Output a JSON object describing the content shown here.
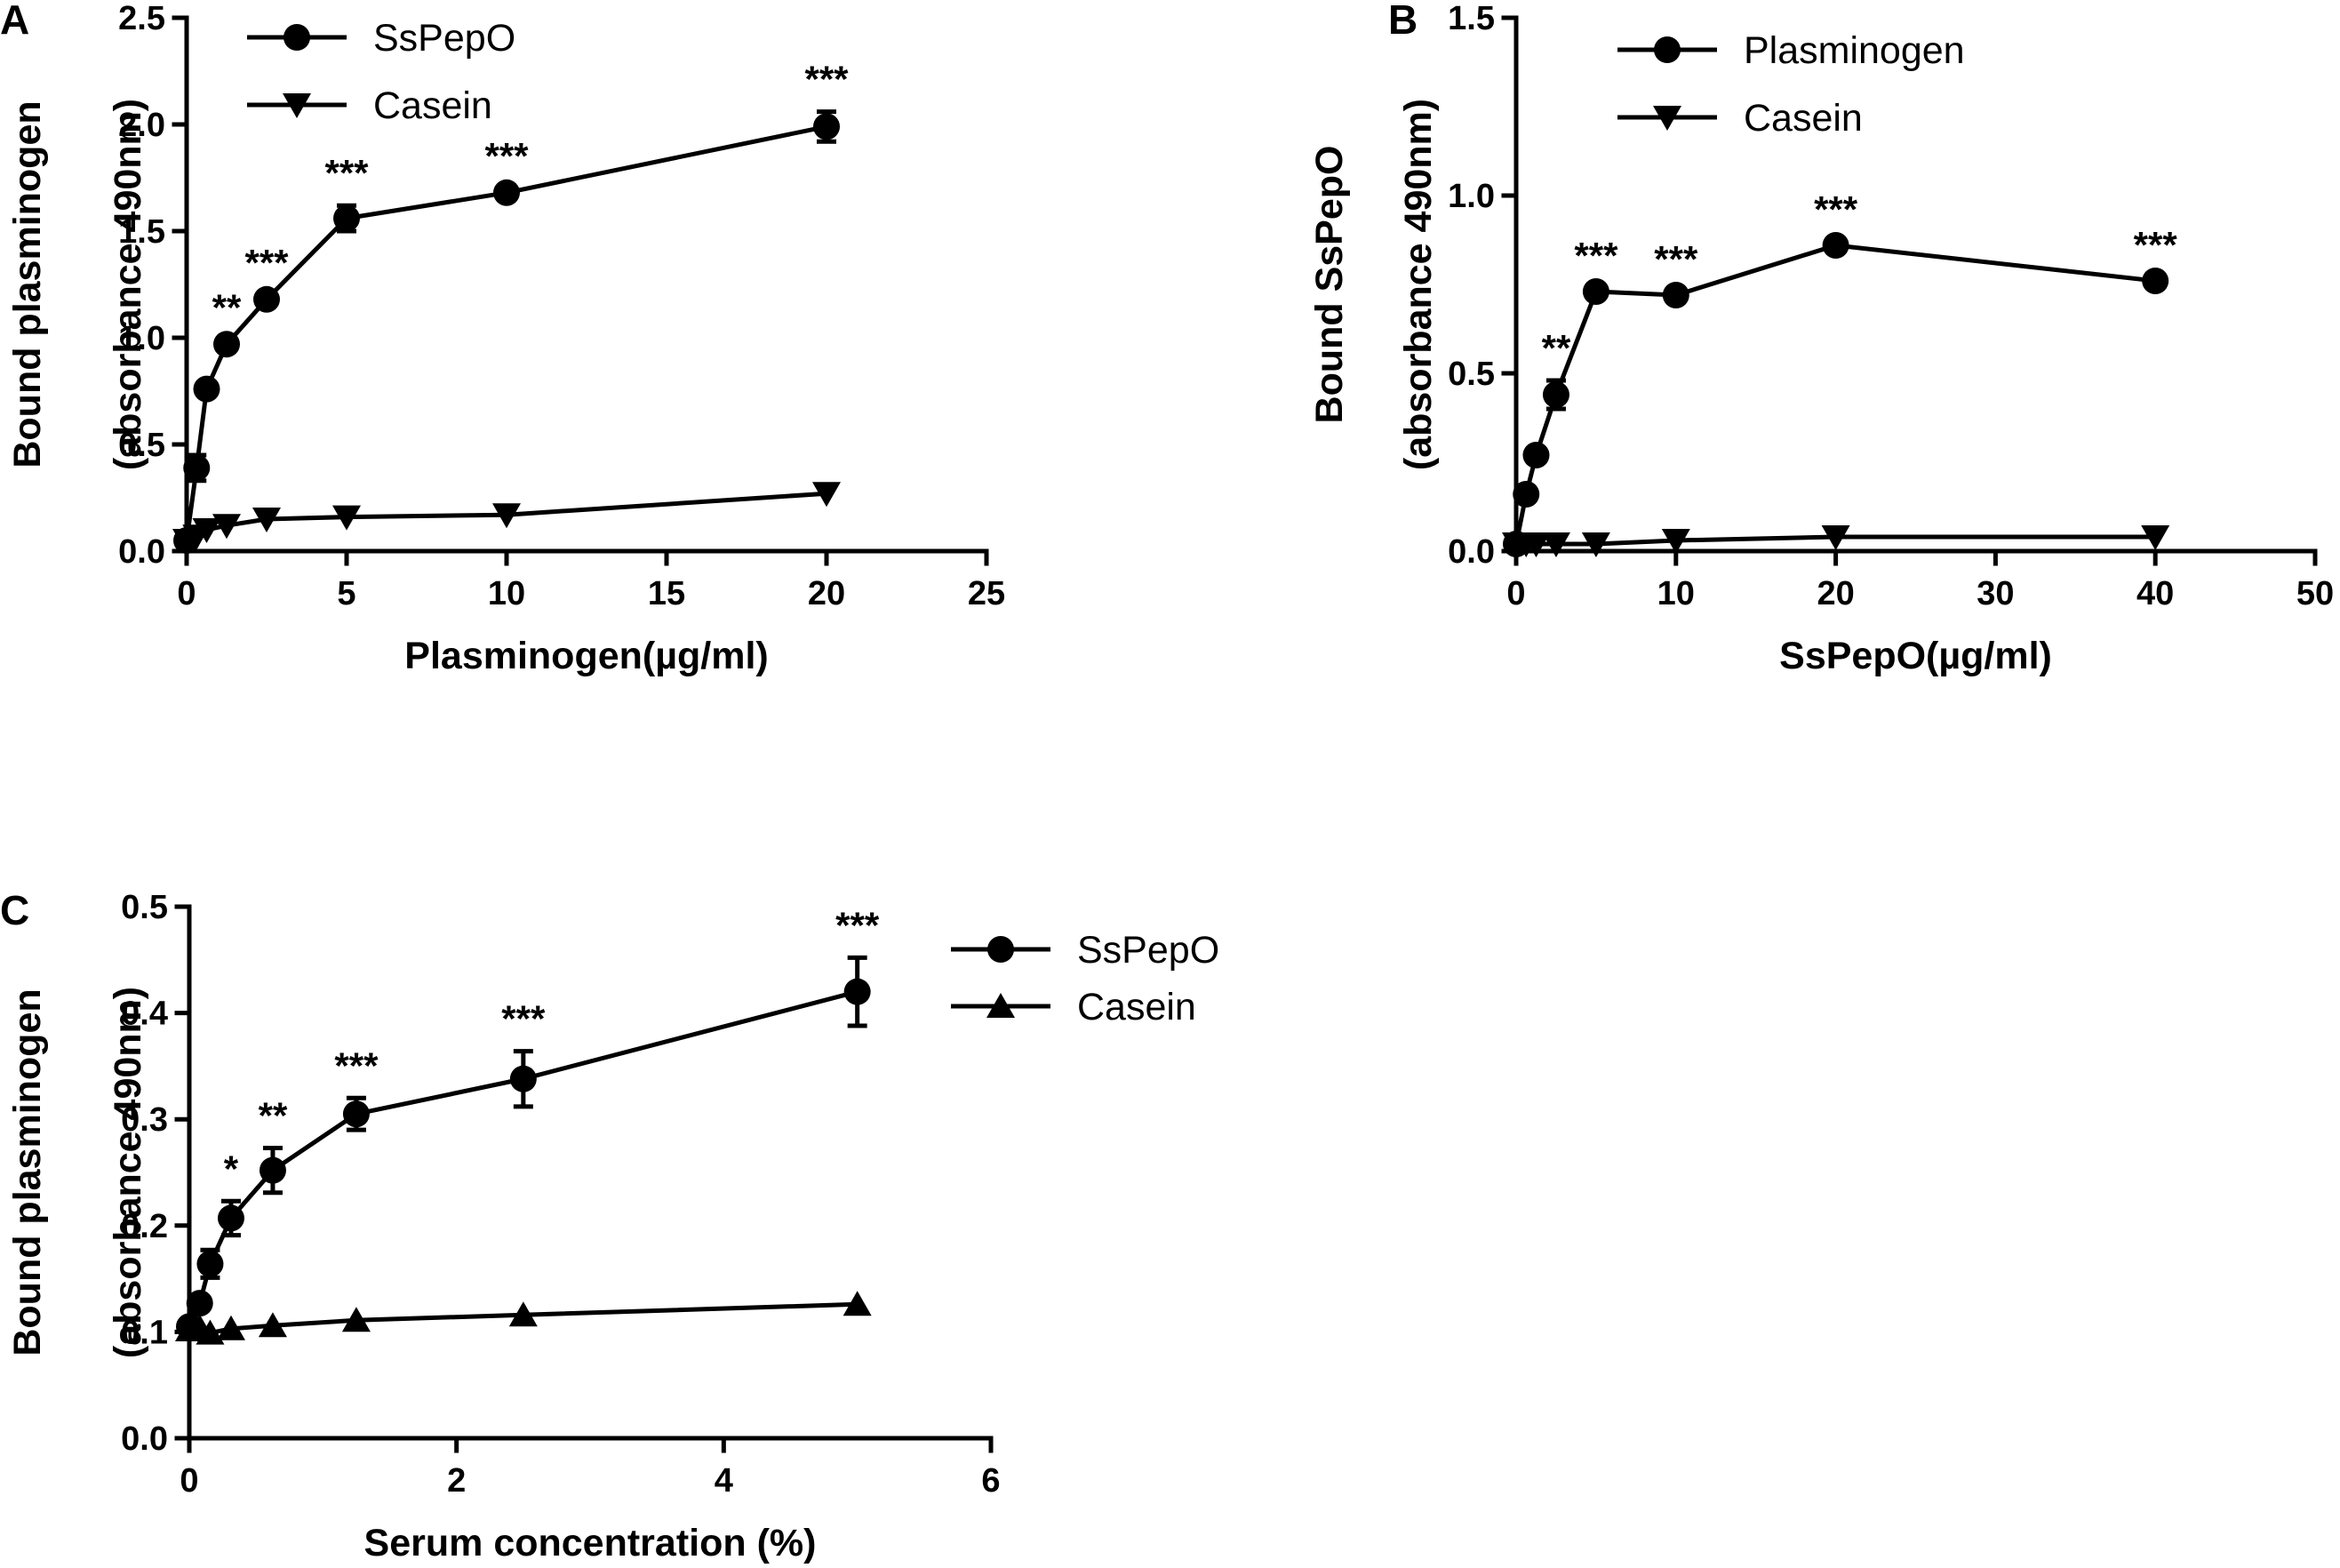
{
  "chart_data": [
    {
      "type": "line",
      "panel_label": "A",
      "xlabel": "Plasminogen(µg/ml)",
      "ylabel": [
        "Bound plasminogen",
        "(absorbance 490nm)"
      ],
      "xlim": [
        0,
        25
      ],
      "ylim": [
        0,
        2.5
      ],
      "x_ticks": [
        0,
        5,
        10,
        15,
        20,
        25
      ],
      "y_ticks": [
        0.0,
        0.5,
        1.0,
        1.5,
        2.0,
        2.5
      ],
      "y_tick_labels": [
        "0.0",
        "0.5",
        "1.0",
        "1.5",
        "2.0",
        "2.5"
      ],
      "legend": {
        "placement": "top-left"
      },
      "series": [
        {
          "name": "SsPepO",
          "marker": "circle",
          "x": [
            0,
            0.3125,
            0.625,
            1.25,
            2.5,
            5,
            10,
            20
          ],
          "y": [
            0.05,
            0.39,
            0.76,
            0.97,
            1.18,
            1.56,
            1.68,
            1.99
          ],
          "err": [
            0.01,
            0.06,
            0.02,
            0.02,
            0.02,
            0.06,
            0.02,
            0.07
          ],
          "annotations": [
            "",
            "",
            "",
            "**",
            "***",
            "***",
            "***",
            "***"
          ]
        },
        {
          "name": "Casein",
          "marker": "triangle-down",
          "x": [
            0,
            0.3125,
            0.625,
            1.25,
            2.5,
            5,
            10,
            20
          ],
          "y": [
            0.05,
            0.07,
            0.1,
            0.12,
            0.15,
            0.16,
            0.17,
            0.27
          ],
          "err": [
            0,
            0,
            0,
            0,
            0,
            0,
            0,
            0
          ],
          "annotations": []
        }
      ]
    },
    {
      "type": "line",
      "panel_label": "B",
      "xlabel": "SsPepO(µg/ml)",
      "ylabel": [
        "Bound SsPepO",
        "(absorbance 490nm)"
      ],
      "xlim": [
        0,
        50
      ],
      "ylim": [
        0,
        1.5
      ],
      "x_ticks": [
        0,
        10,
        20,
        30,
        40,
        50
      ],
      "y_ticks": [
        0.0,
        0.5,
        1.0,
        1.5
      ],
      "y_tick_labels": [
        "0.0",
        "0.5",
        "1.0",
        "1.5"
      ],
      "legend": {
        "placement": "top-right"
      },
      "series": [
        {
          "name": "Plasminogen",
          "marker": "circle",
          "x": [
            0,
            0.625,
            1.25,
            2.5,
            5,
            10,
            20,
            40
          ],
          "y": [
            0.02,
            0.16,
            0.27,
            0.44,
            0.73,
            0.72,
            0.86,
            0.76
          ],
          "err": [
            0.01,
            0.01,
            0.01,
            0.04,
            0.01,
            0.01,
            0.01,
            0.01
          ],
          "annotations": [
            "",
            "",
            "",
            "**",
            "***",
            "***",
            "***",
            "***"
          ]
        },
        {
          "name": "Casein",
          "marker": "triangle-down",
          "x": [
            0,
            0.625,
            1.25,
            2.5,
            5,
            10,
            20,
            40
          ],
          "y": [
            0.02,
            0.02,
            0.02,
            0.02,
            0.02,
            0.03,
            0.04,
            0.04
          ],
          "err": [
            0,
            0,
            0,
            0,
            0,
            0,
            0,
            0
          ],
          "annotations": []
        }
      ]
    },
    {
      "type": "line",
      "panel_label": "C",
      "xlabel": "Serum concentration (%)",
      "ylabel": [
        "Bound plasminogen",
        "(absorbance 490nm)"
      ],
      "xlim": [
        0,
        6
      ],
      "ylim": [
        0,
        0.5
      ],
      "x_ticks": [
        0,
        2,
        4,
        6
      ],
      "y_ticks": [
        0.0,
        0.1,
        0.2,
        0.3,
        0.4,
        0.5
      ],
      "y_tick_labels": [
        "0.0",
        "0.1",
        "0.2",
        "0.3",
        "0.4",
        "0.5"
      ],
      "legend": {
        "placement": "outside-right"
      },
      "series": [
        {
          "name": "SsPepO",
          "marker": "circle",
          "x": [
            0,
            0.078,
            0.156,
            0.3125,
            0.625,
            1.25,
            2.5,
            5
          ],
          "y": [
            0.105,
            0.127,
            0.164,
            0.207,
            0.252,
            0.305,
            0.338,
            0.42
          ],
          "err": [
            0.003,
            0.005,
            0.013,
            0.016,
            0.021,
            0.015,
            0.026,
            0.032
          ],
          "annotations": [
            "",
            "",
            "",
            "*",
            "**",
            "***",
            "***",
            "***"
          ]
        },
        {
          "name": "Casein",
          "marker": "triangle-up",
          "x": [
            0,
            0.078,
            0.156,
            0.3125,
            0.625,
            1.25,
            2.5,
            5
          ],
          "y": [
            0.102,
            0.104,
            0.099,
            0.103,
            0.106,
            0.111,
            0.116,
            0.126
          ],
          "err": [
            0,
            0,
            0,
            0,
            0,
            0,
            0,
            0
          ],
          "annotations": []
        }
      ]
    }
  ]
}
